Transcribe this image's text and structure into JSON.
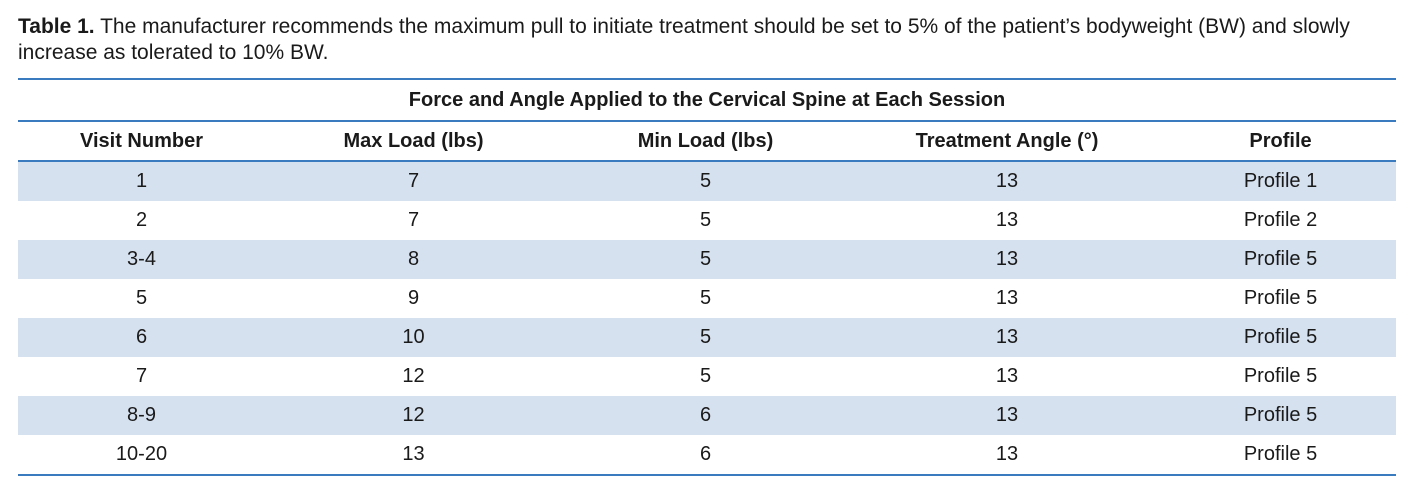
{
  "caption": {
    "label": "Table 1.",
    "text": "The manufacturer recommends the maximum pull to initiate treatment should be set to 5% of the patient’s bodyweight (BW) and slowly increase as tolerated to 10% BW."
  },
  "table": {
    "title": "Force and Angle Applied to the Cervical Spine at Each Session",
    "headers": [
      "Visit Number",
      "Max Load (lbs)",
      "Min Load (lbs)",
      "Treatment Angle (°)",
      "Profile"
    ],
    "rows": [
      [
        "1",
        "7",
        "5",
        "13",
        "Profile 1"
      ],
      [
        "2",
        "7",
        "5",
        "13",
        "Profile 2"
      ],
      [
        "3-4",
        "8",
        "5",
        "13",
        "Profile 5"
      ],
      [
        "5",
        "9",
        "5",
        "13",
        "Profile 5"
      ],
      [
        "6",
        "10",
        "5",
        "13",
        "Profile 5"
      ],
      [
        "7",
        "12",
        "5",
        "13",
        "Profile 5"
      ],
      [
        "8-9",
        "12",
        "6",
        "13",
        "Profile 5"
      ],
      [
        "10-20",
        "13",
        "6",
        "13",
        "Profile 5"
      ]
    ]
  },
  "colors": {
    "rule": "#3a7bbf",
    "band": "#d6e1f0"
  }
}
